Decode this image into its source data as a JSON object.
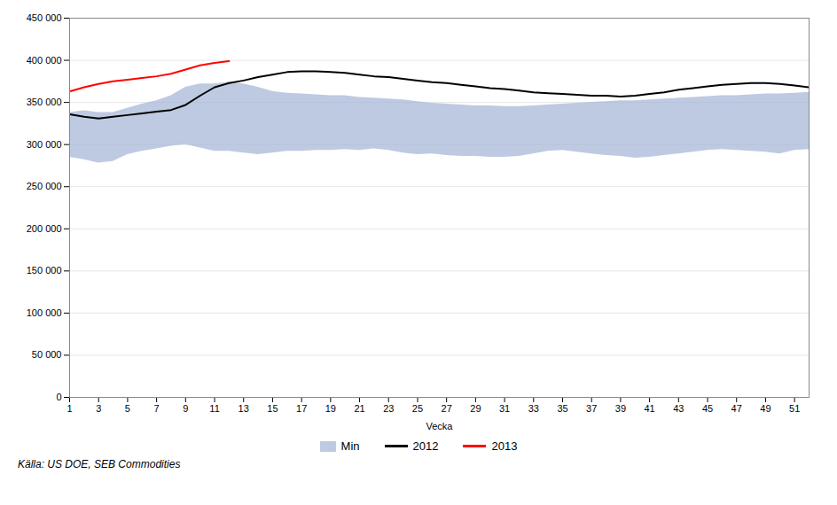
{
  "chart_data": {
    "type": "line",
    "xlabel": "Vecka",
    "caption": "Källa: US DOE, SEB Commodities",
    "x": [
      1,
      2,
      3,
      4,
      5,
      6,
      7,
      8,
      9,
      10,
      11,
      12,
      13,
      14,
      15,
      16,
      17,
      18,
      19,
      20,
      21,
      22,
      23,
      24,
      25,
      26,
      27,
      28,
      29,
      30,
      31,
      32,
      33,
      34,
      35,
      36,
      37,
      38,
      39,
      40,
      41,
      42,
      43,
      44,
      45,
      46,
      47,
      48,
      49,
      50,
      51,
      52
    ],
    "series": [
      {
        "name": "Min",
        "type": "area",
        "color": "#a8b8d8",
        "values": [
          285000,
          282000,
          278000,
          280000,
          288000,
          292000,
          295000,
          298000,
          300000,
          296000,
          292000,
          292000,
          290000,
          288000,
          290000,
          292000,
          292000,
          293000,
          293000,
          294000,
          293000,
          295000,
          293000,
          290000,
          288000,
          289000,
          287000,
          286000,
          286000,
          285000,
          285000,
          286000,
          289000,
          292000,
          293000,
          291000,
          289000,
          287000,
          286000,
          284000,
          285000,
          287000,
          289000,
          291000,
          293000,
          294000,
          293000,
          292000,
          291000,
          289000,
          293000,
          294000
        ],
        "upper": [
          338000,
          340000,
          338000,
          338000,
          343000,
          348000,
          352000,
          358000,
          368000,
          372000,
          372000,
          374000,
          372000,
          368000,
          363000,
          361000,
          360000,
          359000,
          358000,
          358000,
          356000,
          355000,
          354000,
          353000,
          351000,
          349000,
          348000,
          347000,
          346000,
          346000,
          345000,
          345000,
          346000,
          347000,
          348000,
          349000,
          350000,
          351000,
          352000,
          352000,
          353000,
          354000,
          355000,
          356000,
          357000,
          358000,
          358000,
          359000,
          360000,
          360000,
          361000,
          362000
        ]
      },
      {
        "name": "2012",
        "type": "line",
        "color": "#000000",
        "values": [
          336000,
          333000,
          331000,
          333000,
          335000,
          337000,
          339000,
          341000,
          347000,
          358000,
          368000,
          373000,
          376000,
          380000,
          383000,
          386000,
          387000,
          387000,
          386000,
          385000,
          383000,
          381000,
          380000,
          378000,
          376000,
          374000,
          373000,
          371000,
          369000,
          367000,
          366000,
          364000,
          362000,
          361000,
          360000,
          359000,
          358000,
          358000,
          357000,
          358000,
          360000,
          362000,
          365000,
          367000,
          369000,
          371000,
          372000,
          373000,
          373000,
          372000,
          370000,
          368000
        ]
      },
      {
        "name": "2013",
        "type": "line",
        "color": "#ff0000",
        "values": [
          363000,
          368000,
          372000,
          375000,
          377000,
          379000,
          381000,
          384000,
          389000,
          394000,
          397000,
          399000,
          null,
          null,
          null,
          null,
          null,
          null,
          null,
          null,
          null,
          null,
          null,
          null,
          null,
          null,
          null,
          null,
          null,
          null,
          null,
          null,
          null,
          null,
          null,
          null,
          null,
          null,
          null,
          null,
          null,
          null,
          null,
          null,
          null,
          null,
          null,
          null,
          null,
          null,
          null,
          null
        ]
      }
    ],
    "xlim": [
      1,
      52
    ],
    "xticks": [
      1,
      3,
      5,
      7,
      9,
      11,
      13,
      15,
      17,
      19,
      21,
      23,
      25,
      27,
      29,
      31,
      33,
      35,
      37,
      39,
      41,
      43,
      45,
      47,
      49,
      51
    ],
    "ylim": [
      0,
      450000
    ],
    "yticks": [
      0,
      {
        "value": 50000,
        "label": "50 000"
      },
      {
        "value": 100000,
        "label": "100 000"
      },
      {
        "value": 150000,
        "label": "150 000"
      },
      {
        "value": 200000,
        "label": "200 000"
      },
      {
        "value": 250000,
        "label": "250 000"
      },
      {
        "value": 300000,
        "label": "300 000"
      },
      {
        "value": 350000,
        "label": "350 000"
      },
      {
        "value": 400000,
        "label": "400 000"
      },
      {
        "value": 450000,
        "label": "450 000"
      }
    ],
    "grid": "y",
    "legend": "bottom"
  }
}
